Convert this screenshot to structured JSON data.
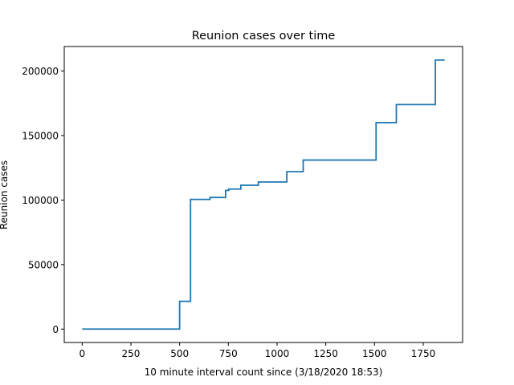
{
  "chart_data": {
    "type": "line",
    "drawstyle": "steps-post",
    "title": "Reunion cases over time",
    "xlabel": "10 minute interval count since (3/18/2020 18:53)",
    "ylabel": "Reunion cases",
    "xlim": [
      -92,
      1952
    ],
    "ylim": [
      -10400,
      219000
    ],
    "xticks": [
      0,
      250,
      500,
      750,
      1000,
      1250,
      1500,
      1750
    ],
    "yticks": [
      0,
      50000,
      100000,
      150000,
      200000
    ],
    "grid": false,
    "line_color": "#1f77b4",
    "series": [
      {
        "x": [
          0,
          500,
          556,
          656,
          736,
          752,
          814,
          904,
          1050,
          1134,
          1508,
          1612,
          1812,
          1860
        ],
        "y": [
          0,
          21500,
          100500,
          102000,
          107500,
          108500,
          111500,
          114000,
          122000,
          131000,
          160000,
          174000,
          208500,
          208500
        ]
      }
    ]
  }
}
